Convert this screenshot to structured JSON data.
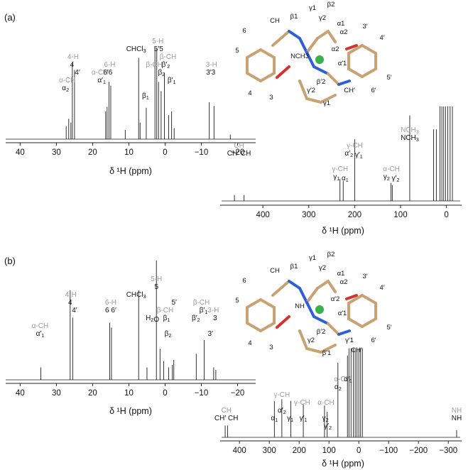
{
  "figure": {
    "panels": [
      {
        "label": "(a)",
        "main": {
          "xlabel": "δ ¹H (ppm)",
          "xlim": [
            44,
            -25
          ],
          "ticks": [
            40,
            30,
            20,
            10,
            0,
            -10,
            -20
          ],
          "peaks": [
            {
              "x": 27.3,
              "h": 0.14
            },
            {
              "x": 26.6,
              "h": 0.22
            },
            {
              "x": 26.0,
              "h": 0.18
            },
            {
              "x": 25.6,
              "h": 0.82
            },
            {
              "x": 25.0,
              "h": 0.75
            },
            {
              "x": 16.4,
              "h": 0.3
            },
            {
              "x": 16.0,
              "h": 0.35
            },
            {
              "x": 15.5,
              "h": 0.62
            },
            {
              "x": 15.0,
              "h": 0.58
            },
            {
              "x": 11.0,
              "h": 0.1
            },
            {
              "x": 7.3,
              "h": 0.88
            },
            {
              "x": 6.9,
              "h": 0.18
            },
            {
              "x": 5.2,
              "h": 0.34
            },
            {
              "x": 2.8,
              "h": 0.98
            },
            {
              "x": 2.3,
              "h": 0.98
            },
            {
              "x": 1.8,
              "h": 0.62
            },
            {
              "x": 1.1,
              "h": 0.52
            },
            {
              "x": 0.2,
              "h": 0.72
            },
            {
              "x": -1.0,
              "h": 0.26
            },
            {
              "x": -1.8,
              "h": 0.3
            },
            {
              "x": -2.5,
              "h": 0.12
            },
            {
              "x": -12.2,
              "h": 0.4
            },
            {
              "x": -13.5,
              "h": 0.36
            },
            {
              "x": -18.0,
              "h": 0.05
            }
          ],
          "labels": [
            {
              "x": 27.0,
              "t": "α-CH",
              "row": 1,
              "grey": true
            },
            {
              "x": 27.5,
              "t": "α2",
              "row": 2
            },
            {
              "x": 25.4,
              "t": "4-H",
              "row": -2,
              "grey": true
            },
            {
              "x": 25.7,
              "t": "4",
              "row": -1
            },
            {
              "x": 24.2,
              "t": "4′",
              "row": 0
            },
            {
              "x": 18.0,
              "t": "α-CH",
              "row": 0,
              "grey": true
            },
            {
              "x": 17.5,
              "t": "α′1",
              "row": 1
            },
            {
              "x": 15.3,
              "t": "6-H",
              "row": -1,
              "grey": true
            },
            {
              "x": 15.8,
              "t": "6′6",
              "row": 0
            },
            {
              "x": 8.0,
              "t": "CHCl3",
              "row": -3
            },
            {
              "x": 5.4,
              "t": "β1",
              "row": 3
            },
            {
              "x": 2.0,
              "t": "5-H",
              "row": -4,
              "grey": true
            },
            {
              "x": 1.8,
              "t": "5′5",
              "row": -3
            },
            {
              "x": 3.0,
              "t": "β-CH",
              "row": -1,
              "grey": true
            },
            {
              "x": 1.0,
              "t": "β2",
              "row": 0
            },
            {
              "x": -0.8,
              "t": "β-CH",
              "row": -2,
              "grey": true
            },
            {
              "x": -0.2,
              "t": "β′2",
              "row": -1
            },
            {
              "x": -1.8,
              "t": "β′1",
              "row": 1
            },
            {
              "x": -12.8,
              "t": "3-H",
              "row": -1,
              "grey": true
            },
            {
              "x": -12.6,
              "t": "3′3",
              "row": 0
            }
          ]
        },
        "wide": {
          "xlabel": "δ ¹H (ppm)",
          "xlim": [
            490,
            -30
          ],
          "ticks": [
            400,
            300,
            200,
            100,
            0
          ],
          "peaks": [
            {
              "x": 462,
              "h": 0.06
            },
            {
              "x": 441,
              "h": 0.06
            },
            {
              "x": 232,
              "h": 0.22
            },
            {
              "x": 225,
              "h": 0.2
            },
            {
              "x": 200,
              "h": 0.62
            },
            {
              "x": 121,
              "h": 0.18
            },
            {
              "x": 118,
              "h": 0.16
            },
            {
              "x": 80,
              "h": 0.86
            },
            {
              "x": 28,
              "h": 0.72
            },
            {
              "x": 22,
              "h": 0.72
            },
            {
              "x": 14,
              "h": 0.95
            },
            {
              "x": 10,
              "h": 0.95
            },
            {
              "x": 6,
              "h": 0.95
            },
            {
              "x": 2,
              "h": 0.95
            },
            {
              "x": -3,
              "h": 0.95
            },
            {
              "x": -8,
              "h": 0.95
            },
            {
              "x": -13,
              "h": 0.95
            }
          ],
          "labels": [
            {
              "x": 452,
              "t": "CH",
              "row": 0,
              "grey": true
            },
            {
              "x": 452,
              "t": "CH′ CH",
              "row": 1
            },
            {
              "x": 232,
              "t": "γ-CH",
              "row": 3,
              "grey": true
            },
            {
              "x": 230,
              "t": "γ1 α1",
              "row": 4
            },
            {
              "x": 200,
              "t": "γ-CH",
              "row": 0,
              "grey": true
            },
            {
              "x": 202,
              "t": "α′2 γ′1",
              "row": 1
            },
            {
              "x": 120,
              "t": "α-CH",
              "row": 3,
              "grey": true
            },
            {
              "x": 120,
              "t": "γ2 γ′2",
              "row": 4
            },
            {
              "x": 80,
              "t": "NCH3",
              "row": -2,
              "grey": true
            },
            {
              "x": 80,
              "t": "NCH3",
              "row": -1
            }
          ]
        },
        "molecule": {
          "atoms": [
            "CH",
            "β1",
            "γ1",
            "β2",
            "γ2",
            "α1",
            "α2",
            "3′",
            "4′",
            "5′",
            "6′",
            "6",
            "5",
            "4",
            "3",
            "NCH3",
            "α2",
            "α′1",
            "β′2",
            "γ′2",
            "γ1",
            "CH′"
          ]
        }
      },
      {
        "label": "(b)",
        "main": {
          "xlabel": "δ ¹H (ppm)",
          "xlim": [
            44,
            -25
          ],
          "ticks": [
            40,
            30,
            20,
            10,
            0,
            -10,
            -20
          ],
          "peaks": [
            {
              "x": 34.3,
              "h": 0.1
            },
            {
              "x": 26.2,
              "h": 0.72
            },
            {
              "x": 25.5,
              "h": 0.5
            },
            {
              "x": 15.3,
              "h": 0.46
            },
            {
              "x": 14.8,
              "h": 0.42
            },
            {
              "x": 7.3,
              "h": 0.72
            },
            {
              "x": 5.0,
              "h": 0.1
            },
            {
              "x": 2.4,
              "h": 0.96
            },
            {
              "x": 1.4,
              "h": 0.25
            },
            {
              "x": 0.4,
              "h": 0.15
            },
            {
              "x": -1.0,
              "h": 0.1
            },
            {
              "x": -2.0,
              "h": 0.12
            },
            {
              "x": -2.4,
              "h": 0.16
            },
            {
              "x": -8.6,
              "h": 0.21
            },
            {
              "x": -10.8,
              "h": 0.32
            },
            {
              "x": -13.4,
              "h": 0.1
            },
            {
              "x": -14.0,
              "h": 0.08
            }
          ],
          "labels": [
            {
              "x": 34.5,
              "t": "α-CH",
              "row": 2,
              "grey": true
            },
            {
              "x": 34.5,
              "t": "α′1",
              "row": 3
            },
            {
              "x": 26.0,
              "t": "4-H",
              "row": -2,
              "grey": true
            },
            {
              "x": 26.2,
              "t": "4",
              "row": -1
            },
            {
              "x": 25.0,
              "t": "4′",
              "row": 0
            },
            {
              "x": 15.0,
              "t": "6-H",
              "row": -1,
              "grey": true
            },
            {
              "x": 15.0,
              "t": "6 6′",
              "row": 0
            },
            {
              "x": 8.0,
              "t": "CHCl3",
              "row": -2
            },
            {
              "x": 2.4,
              "t": "5-H",
              "row": -4,
              "grey": true
            },
            {
              "x": 2.4,
              "t": "5",
              "row": -3
            },
            {
              "x": 3.5,
              "t": "H2O",
              "row": 1
            },
            {
              "x": 0.0,
              "t": "β-CH",
              "row": 0,
              "grey": true
            },
            {
              "x": -0.4,
              "t": "β1",
              "row": 1
            },
            {
              "x": -0.8,
              "t": "β2",
              "row": 3
            },
            {
              "x": -2.5,
              "t": "5′",
              "row": -1
            },
            {
              "x": -10.0,
              "t": "β-CH",
              "row": -1,
              "grey": true
            },
            {
              "x": -8.5,
              "t": "β′2",
              "row": 1
            },
            {
              "x": -10.6,
              "t": "β′1",
              "row": 0
            },
            {
              "x": -13.3,
              "t": "3-H",
              "row": 0,
              "grey": true
            },
            {
              "x": -13.8,
              "t": "3",
              "row": 1
            },
            {
              "x": -12.5,
              "t": "3′",
              "row": 3
            }
          ]
        },
        "wide": {
          "xlabel": "δ ¹H (ppm)",
          "xlim": [
            460,
            -340
          ],
          "ticks": [
            400,
            300,
            200,
            100,
            0,
            -100,
            -200,
            -300
          ],
          "peaks": [
            {
              "x": 448,
              "h": 0.13
            },
            {
              "x": 440,
              "h": 0.13
            },
            {
              "x": 283,
              "h": 0.4
            },
            {
              "x": 258,
              "h": 0.42
            },
            {
              "x": 228,
              "h": 0.4
            },
            {
              "x": 186,
              "h": 0.37
            },
            {
              "x": 115,
              "h": 0.35
            },
            {
              "x": 106,
              "h": 0.28
            },
            {
              "x": 70,
              "h": 0.82
            },
            {
              "x": 38,
              "h": 0.9
            },
            {
              "x": 33,
              "h": 0.98
            },
            {
              "x": 26,
              "h": 0.98
            },
            {
              "x": 18,
              "h": 0.98
            },
            {
              "x": 12,
              "h": 0.98
            },
            {
              "x": 6,
              "h": 0.98
            },
            {
              "x": 0,
              "h": 0.98
            },
            {
              "x": -6,
              "h": 0.98
            },
            {
              "x": -12,
              "h": 0.98
            },
            {
              "x": -328,
              "h": 0.08
            }
          ],
          "labels": [
            {
              "x": 444,
              "t": "CH",
              "row": 3,
              "grey": true
            },
            {
              "x": 444,
              "t": "CH′ CH",
              "row": 4
            },
            {
              "x": 258,
              "t": "γ-CH",
              "row": 1,
              "grey": true
            },
            {
              "x": 190,
              "t": "γ-CH",
              "row": 2,
              "grey": true
            },
            {
              "x": 283,
              "t": "α1",
              "row": 4
            },
            {
              "x": 258,
              "t": "α′2",
              "row": 3
            },
            {
              "x": 230,
              "t": "γ1",
              "row": 4
            },
            {
              "x": 186,
              "t": "γ′1",
              "row": 4
            },
            {
              "x": 110,
              "t": "α-CH",
              "row": 2,
              "grey": true
            },
            {
              "x": 112,
              "t": "γ2",
              "row": 4
            },
            {
              "x": 104,
              "t": "γ′2",
              "row": 5
            },
            {
              "x": 55,
              "t": "α-CH",
              "row": -1,
              "grey": true
            },
            {
              "x": 70,
              "t": "α2",
              "row": 0
            },
            {
              "x": 36,
              "t": "α′1",
              "row": -1
            },
            {
              "x": -328,
              "t": "NH",
              "row": 3,
              "grey": true
            },
            {
              "x": -328,
              "t": "NH",
              "row": 4
            }
          ]
        },
        "molecule": {
          "atoms": [
            "CH",
            "β1",
            "γ1",
            "β2",
            "γ2",
            "α1",
            "α2",
            "3′",
            "4′",
            "5′",
            "6′",
            "6",
            "5",
            "4",
            "3",
            "NH",
            "α′2",
            "α′1",
            "β′2",
            "γ2",
            "β′1",
            "γ′1",
            "CH′"
          ]
        }
      }
    ]
  },
  "colors": {
    "spectrum": "#1a1a1a",
    "label": "#111111",
    "grey_label": "#9c9c9c",
    "frame": "#222222",
    "c_bond": "#c9a273",
    "n_bond": "#2f5fd6",
    "o_bond": "#d1332e",
    "metal": "#33b349",
    "fine_bond": "#333333"
  }
}
